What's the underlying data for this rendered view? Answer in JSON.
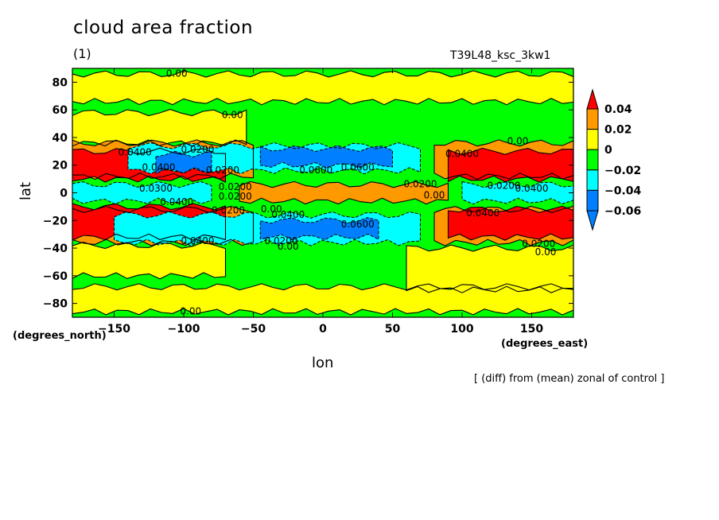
{
  "header": {
    "title": "cloud area fraction",
    "subtitle": "(1)",
    "run_name": "T39L48_ksc_3kw1",
    "note": "[ (diff) from (mean) zonal of control ]"
  },
  "chart_data": {
    "type": "heatmap",
    "title": "cloud area fraction",
    "xlabel": "lon",
    "ylabel": "lat",
    "x_units": "(degrees_east)",
    "y_units": "(degrees_north)",
    "xlim": [
      -180,
      180
    ],
    "ylim": [
      -90,
      90
    ],
    "xticks": [
      -150,
      -100,
      -50,
      0,
      50,
      100,
      150
    ],
    "yticks": [
      -80,
      -60,
      -40,
      -20,
      0,
      20,
      40,
      60,
      80
    ],
    "colorbar": {
      "levels": [
        0.04,
        0.02,
        0,
        -0.02,
        -0.04,
        -0.06
      ],
      "level_labels": [
        "0.04",
        "0.02",
        "0",
        "−0.02",
        "−0.04",
        "−0.06"
      ],
      "colors": [
        "#ff0000",
        "#ff9900",
        "#ffff00",
        "#00ff00",
        "#00ffff",
        "#0080ff"
      ],
      "over_color": "#ff0000",
      "under_color": "#0080ff"
    },
    "bands": [
      {
        "name": "yellow",
        "lat_min": 66,
        "lat_max": 86,
        "lon_min": -180,
        "lon_max": 180,
        "value": 0.01
      },
      {
        "name": "yellow",
        "lat_min": -86,
        "lat_max": -68,
        "lon_min": -180,
        "lon_max": 180,
        "value": 0.01
      },
      {
        "name": "yellow",
        "lat_min": 36,
        "lat_max": 58,
        "lon_min": -180,
        "lon_max": -55,
        "value": 0.005
      },
      {
        "name": "yellow",
        "lat_min": -60,
        "lat_max": -38,
        "lon_min": -180,
        "lon_max": -70,
        "value": 0.005
      },
      {
        "name": "yellow",
        "lat_min": -70,
        "lat_max": -40,
        "lon_min": 60,
        "lon_max": 180,
        "value": 0.005
      },
      {
        "name": "orange",
        "lat_min": 12,
        "lat_max": 36,
        "lon_min": -180,
        "lon_max": -50,
        "value": 0.03
      },
      {
        "name": "orange",
        "lat_min": -36,
        "lat_max": -12,
        "lon_min": -180,
        "lon_max": -50,
        "value": 0.03
      },
      {
        "name": "orange",
        "lat_min": 12,
        "lat_max": 36,
        "lon_min": 80,
        "lon_max": 180,
        "value": 0.03
      },
      {
        "name": "orange",
        "lat_min": -36,
        "lat_max": -12,
        "lon_min": 80,
        "lon_max": 180,
        "value": 0.03
      },
      {
        "name": "orange",
        "lat_min": -6,
        "lat_max": 6,
        "lon_min": -60,
        "lon_max": 90,
        "value": 0.02
      },
      {
        "name": "red",
        "lat_min": 10,
        "lat_max": 30,
        "lon_min": -180,
        "lon_max": -70,
        "value": 0.05
      },
      {
        "name": "red",
        "lat_min": -32,
        "lat_max": -10,
        "lon_min": -180,
        "lon_max": -70,
        "value": 0.05
      },
      {
        "name": "red",
        "lat_min": 10,
        "lat_max": 30,
        "lon_min": 90,
        "lon_max": 180,
        "value": 0.05
      },
      {
        "name": "red",
        "lat_min": -32,
        "lat_max": -12,
        "lon_min": 90,
        "lon_max": 180,
        "value": 0.05
      },
      {
        "name": "cyan",
        "lat_min": 16,
        "lat_max": 34,
        "lon_min": -140,
        "lon_max": 70,
        "value": -0.03
      },
      {
        "name": "cyan",
        "lat_min": -36,
        "lat_max": -16,
        "lon_min": -150,
        "lon_max": 70,
        "value": -0.03
      },
      {
        "name": "cyan",
        "lat_min": -6,
        "lat_max": 6,
        "lon_min": -180,
        "lon_max": -80,
        "value": -0.03
      },
      {
        "name": "cyan",
        "lat_min": -6,
        "lat_max": 6,
        "lon_min": 100,
        "lon_max": 180,
        "value": -0.03
      },
      {
        "name": "blue",
        "lat_min": 20,
        "lat_max": 32,
        "lon_min": -45,
        "lon_max": 50,
        "value": -0.07
      },
      {
        "name": "blue",
        "lat_min": -32,
        "lat_max": -20,
        "lon_min": -45,
        "lon_max": 40,
        "value": -0.07
      },
      {
        "name": "blue",
        "lat_min": 16,
        "lat_max": 28,
        "lon_min": -120,
        "lon_max": -80,
        "value": -0.05
      }
    ],
    "contour_labels": [
      {
        "text": "0.00",
        "lon": -105,
        "lat": 86
      },
      {
        "text": "0.00",
        "lon": -65,
        "lat": 56
      },
      {
        "text": "0.00",
        "lon": 140,
        "lat": 37
      },
      {
        "text": "0.0400",
        "lon": -135,
        "lat": 29
      },
      {
        "text": "0.0200",
        "lon": -90,
        "lat": 31
      },
      {
        "text": "0.0400",
        "lon": -118,
        "lat": 18
      },
      {
        "text": "0.0200",
        "lon": -72,
        "lat": 16
      },
      {
        "text": "0.0600",
        "lon": -5,
        "lat": 16
      },
      {
        "text": "0.0600",
        "lon": 25,
        "lat": 18
      },
      {
        "text": "0.0400",
        "lon": 100,
        "lat": 28
      },
      {
        "text": "0.0200",
        "lon": 70,
        "lat": 6
      },
      {
        "text": "0.00",
        "lon": 80,
        "lat": -2
      },
      {
        "text": "0.0200",
        "lon": 130,
        "lat": 5
      },
      {
        "text": "0.0400",
        "lon": 150,
        "lat": 3
      },
      {
        "text": "0.0300",
        "lon": -120,
        "lat": 3
      },
      {
        "text": "0.0200",
        "lon": -63,
        "lat": 4
      },
      {
        "text": "0.0200",
        "lon": -63,
        "lat": -3
      },
      {
        "text": "0.0400",
        "lon": -105,
        "lat": -7
      },
      {
        "text": "0.0200",
        "lon": -68,
        "lat": -13
      },
      {
        "text": "0.00",
        "lon": -37,
        "lat": -12
      },
      {
        "text": "0.0400",
        "lon": -25,
        "lat": -16
      },
      {
        "text": "0.0600",
        "lon": 25,
        "lat": -23
      },
      {
        "text": "0.0400",
        "lon": 115,
        "lat": -15
      },
      {
        "text": "0.0400",
        "lon": -90,
        "lat": -35
      },
      {
        "text": "0.0200",
        "lon": -30,
        "lat": -35
      },
      {
        "text": "0.00",
        "lon": -25,
        "lat": -39
      },
      {
        "text": "0.0200",
        "lon": 155,
        "lat": -37
      },
      {
        "text": "0.00",
        "lon": 160,
        "lat": -43
      },
      {
        "text": "0.00",
        "lon": -95,
        "lat": -86
      }
    ]
  }
}
